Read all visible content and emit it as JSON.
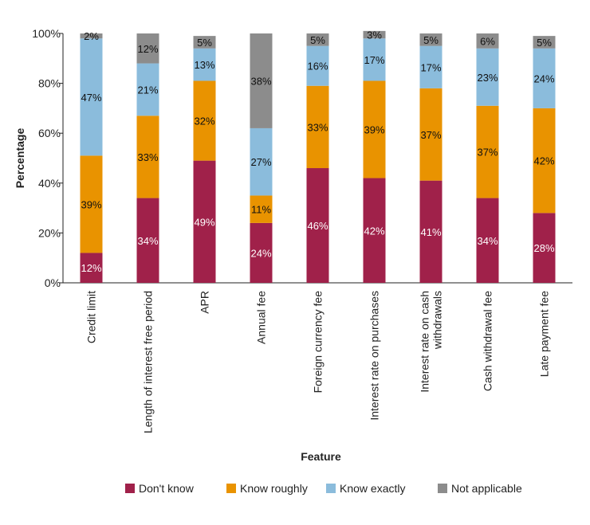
{
  "chart_data": {
    "type": "bar",
    "stacked": true,
    "title": "",
    "xlabel": "Feature",
    "ylabel": "Percentage",
    "ylim": [
      0,
      100
    ],
    "yticks": [
      "0%",
      "20%",
      "40%",
      "60%",
      "80%",
      "100%"
    ],
    "categories": [
      [
        "Credit limit"
      ],
      [
        "Length of interest free period"
      ],
      [
        "APR"
      ],
      [
        "Annual fee"
      ],
      [
        "Foreign currency fee"
      ],
      [
        "Interest rate on purchases"
      ],
      [
        "Interest rate on cash",
        "withdrawals"
      ],
      [
        "Cash withdrawal fee"
      ],
      [
        "Late payment fee"
      ]
    ],
    "series": [
      {
        "name": "Don't know",
        "color": "#a0214a",
        "label_color": "#ffffff",
        "values": [
          12,
          34,
          49,
          24,
          46,
          42,
          41,
          34,
          28
        ]
      },
      {
        "name": "Know roughly",
        "color": "#e99300",
        "label_color": "#111111",
        "values": [
          39,
          33,
          32,
          11,
          33,
          39,
          37,
          37,
          42
        ]
      },
      {
        "name": "Know exactly",
        "color": "#8bbcdc",
        "label_color": "#111111",
        "values": [
          47,
          21,
          13,
          27,
          16,
          17,
          17,
          23,
          24
        ]
      },
      {
        "name": "Not applicable",
        "color": "#8c8c8c",
        "label_color": "#111111",
        "values": [
          2,
          12,
          5,
          38,
          5,
          3,
          5,
          6,
          5
        ]
      }
    ],
    "grid": false,
    "legend_position": "bottom"
  }
}
